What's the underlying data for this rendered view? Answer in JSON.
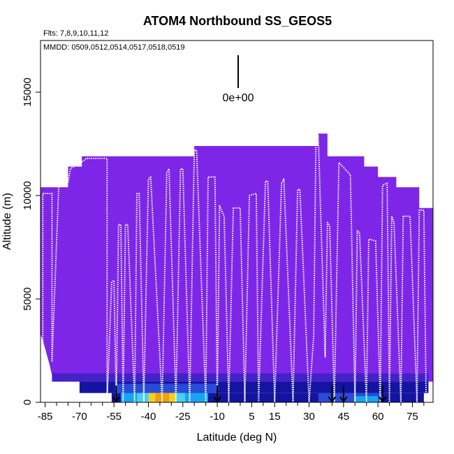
{
  "chart_data": {
    "type": "heatmap",
    "title": "ATOM4 Northbound SS_GEOS5",
    "flights_text": "Flts: 7,8,9,10,11,12",
    "dates_text": "MMDD: 0509,0512,0514,0517,0518,0519",
    "xlabel": "Latitude (deg N)",
    "ylabel": "Altitude (m)",
    "xlim": [
      -87,
      84
    ],
    "ylim": [
      0,
      17500
    ],
    "x_ticks": [
      -85,
      -70,
      -55,
      -40,
      -25,
      -10,
      5,
      15,
      30,
      45,
      60,
      75
    ],
    "x_tick_labels": [
      "-85",
      "-70",
      "-55",
      "-40",
      "-25",
      "-10",
      "5",
      "15",
      "30",
      "45",
      "60",
      "75"
    ],
    "x_minor_ticks": [
      -80,
      -75,
      -65,
      -60,
      -50,
      -45,
      -35,
      -30,
      -20,
      -15,
      -5,
      0,
      10,
      20,
      25,
      35,
      40,
      50,
      55,
      65,
      70,
      80
    ],
    "y_ticks": [
      0,
      5000,
      10000,
      15000
    ],
    "y_tick_labels": [
      "0",
      "5000",
      "10000",
      "15000"
    ],
    "scale_bar_label": "0e+00",
    "colors": {
      "background_field": "#7d26e8",
      "low_mid": "#4422c8",
      "boundary_dark": "#1414a0",
      "boundary_blue": "#2a4bd8",
      "light_blue": "#18a4f0",
      "cyan": "#48d0f8",
      "yellow": "#f0d020",
      "orange": "#f0a010",
      "flight_track": "#ffffff"
    },
    "curtain_top": [
      {
        "lat": -87,
        "alt": 10400
      },
      {
        "lat": -75,
        "alt": 10400
      },
      {
        "lat": -75,
        "alt": 11400
      },
      {
        "lat": -69,
        "alt": 11400
      },
      {
        "lat": -69,
        "alt": 11900
      },
      {
        "lat": -20,
        "alt": 11900
      },
      {
        "lat": -20,
        "alt": 12400
      },
      {
        "lat": 34,
        "alt": 12400
      },
      {
        "lat": 34,
        "alt": 13000
      },
      {
        "lat": 38,
        "alt": 13000
      },
      {
        "lat": 38,
        "alt": 11900
      },
      {
        "lat": 54,
        "alt": 11900
      },
      {
        "lat": 54,
        "alt": 11400
      },
      {
        "lat": 60,
        "alt": 11400
      },
      {
        "lat": 60,
        "alt": 10900
      },
      {
        "lat": 68,
        "alt": 10900
      },
      {
        "lat": 68,
        "alt": 10400
      },
      {
        "lat": 78,
        "alt": 10400
      },
      {
        "lat": 78,
        "alt": 9400
      },
      {
        "lat": 84,
        "alt": 9400
      }
    ],
    "surface_profile": [
      {
        "lat": -87,
        "alt": 3300
      },
      {
        "lat": -86,
        "alt": 3000
      },
      {
        "lat": -85,
        "alt": 2600
      },
      {
        "lat": -84,
        "alt": 2200
      },
      {
        "lat": -83,
        "alt": 1800
      },
      {
        "lat": -82,
        "alt": 1300
      },
      {
        "lat": -81,
        "alt": 1000
      },
      {
        "lat": -80,
        "alt": 1000
      },
      {
        "lat": 80,
        "alt": 1000
      },
      {
        "lat": 84,
        "alt": 1000
      }
    ],
    "bands": [
      {
        "lat0": -82,
        "lat1": 82,
        "alt0": 1000,
        "alt1": 1400,
        "color": "low_mid"
      },
      {
        "lat0": -70,
        "lat1": 82,
        "alt0": 450,
        "alt1": 1000,
        "color": "boundary_dark"
      },
      {
        "lat0": -56,
        "lat1": 80,
        "alt0": 0,
        "alt1": 450,
        "color": "boundary_dark"
      },
      {
        "lat0": -54,
        "lat1": -10,
        "alt0": 450,
        "alt1": 900,
        "color": "boundary_blue"
      },
      {
        "lat0": -52,
        "lat1": -14,
        "alt0": 0,
        "alt1": 450,
        "color": "light_blue"
      },
      {
        "lat0": -45,
        "lat1": -24,
        "alt0": 0,
        "alt1": 450,
        "color": "cyan"
      },
      {
        "lat0": -40,
        "lat1": -28,
        "alt0": 0,
        "alt1": 450,
        "color": "yellow"
      },
      {
        "lat0": -37,
        "lat1": -31,
        "alt0": 0,
        "alt1": 450,
        "color": "orange"
      },
      {
        "lat0": 34,
        "lat1": 62,
        "alt0": 0,
        "alt1": 450,
        "color": "boundary_blue"
      },
      {
        "lat0": 50,
        "lat1": 60,
        "alt0": 0,
        "alt1": 300,
        "color": "light_blue"
      }
    ],
    "flight_track": [
      [
        -86,
        2500
      ],
      [
        -86,
        10100
      ],
      [
        -82,
        10100
      ],
      [
        -82,
        2000
      ],
      [
        -79,
        10600
      ],
      [
        -75,
        10600
      ],
      [
        -74,
        11300
      ],
      [
        -68,
        11700
      ],
      [
        -67,
        11800
      ],
      [
        -58,
        11800
      ],
      [
        -58,
        0
      ],
      [
        -56,
        5800
      ],
      [
        -55,
        5900
      ],
      [
        -54,
        0
      ],
      [
        -53,
        8600
      ],
      [
        -52,
        8600
      ],
      [
        -51,
        0
      ],
      [
        -50,
        8600
      ],
      [
        -49,
        8600
      ],
      [
        -46,
        0
      ],
      [
        -45,
        10100
      ],
      [
        -44,
        10100
      ],
      [
        -42,
        0
      ],
      [
        -40,
        10800
      ],
      [
        -39,
        10900
      ],
      [
        -34,
        0
      ],
      [
        -32,
        11100
      ],
      [
        -31,
        11300
      ],
      [
        -28,
        0
      ],
      [
        -26,
        11300
      ],
      [
        -25,
        11300
      ],
      [
        -22,
        0
      ],
      [
        -20,
        12200
      ],
      [
        -19,
        12200
      ],
      [
        -15,
        0
      ],
      [
        -14,
        10900
      ],
      [
        -11,
        10900
      ],
      [
        -10,
        0
      ],
      [
        -9,
        9500
      ],
      [
        -7,
        9000
      ],
      [
        -5,
        0
      ],
      [
        -3,
        9400
      ],
      [
        0,
        9400
      ],
      [
        2,
        0
      ],
      [
        4,
        10000
      ],
      [
        7,
        10100
      ],
      [
        8,
        0
      ],
      [
        11,
        10700
      ],
      [
        12,
        10700
      ],
      [
        15,
        0
      ],
      [
        18,
        10600
      ],
      [
        19,
        10800
      ],
      [
        23,
        0
      ],
      [
        25,
        10300
      ],
      [
        26,
        10300
      ],
      [
        30,
        0
      ],
      [
        32,
        3200
      ],
      [
        33,
        12800
      ],
      [
        34,
        12900
      ],
      [
        37,
        2200
      ],
      [
        38,
        8700
      ],
      [
        39,
        8500
      ],
      [
        41,
        0
      ],
      [
        43,
        11600
      ],
      [
        48,
        11000
      ],
      [
        50,
        0
      ],
      [
        51,
        8300
      ],
      [
        52,
        8200
      ],
      [
        55,
        0
      ],
      [
        56,
        7900
      ],
      [
        59,
        7800
      ],
      [
        61,
        0
      ],
      [
        62,
        10500
      ],
      [
        64,
        10600
      ],
      [
        65,
        0
      ],
      [
        66,
        9000
      ],
      [
        67,
        8700
      ],
      [
        70,
        0
      ],
      [
        71,
        9000
      ],
      [
        74,
        9000
      ],
      [
        77,
        0
      ],
      [
        78,
        9300
      ],
      [
        80,
        9300
      ],
      [
        81,
        0
      ]
    ],
    "arrows_lat": [
      -54,
      -10,
      40,
      45,
      62
    ]
  }
}
